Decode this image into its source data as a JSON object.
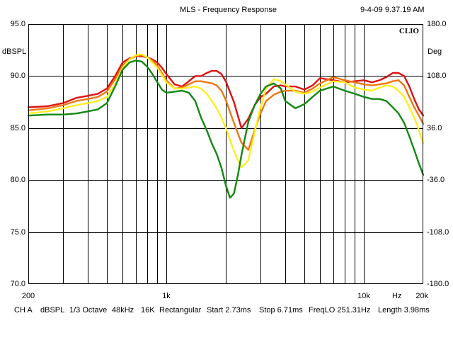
{
  "header": {
    "title": "MLS - Frequency Response",
    "datetime": "9-4-09 9.37.19 AM"
  },
  "chart_data": {
    "type": "line",
    "title": "MLS - Frequency Response",
    "watermark": "CLIO",
    "ylabel": "dBSPL",
    "y2label": "Deg",
    "xlabel": "Hz",
    "x_scale": "log",
    "xlim": [
      200,
      20000
    ],
    "ylim": [
      70,
      95
    ],
    "y2lim": [
      -180,
      180
    ],
    "grid": true,
    "x_tick_labels": [
      {
        "value": 200,
        "label": "200"
      },
      {
        "value": 1000,
        "label": "1k"
      },
      {
        "value": 10000,
        "label": "10k"
      },
      {
        "value": 20000,
        "label": "20k"
      }
    ],
    "y_tick_labels": [
      {
        "value": 95,
        "label": "95.0"
      },
      {
        "value": 90,
        "label": "90.0"
      },
      {
        "value": 85,
        "label": "85.0"
      },
      {
        "value": 80,
        "label": "80.0"
      },
      {
        "value": 75,
        "label": "75.0"
      },
      {
        "value": 70,
        "label": "70.0"
      }
    ],
    "y2_tick_labels": [
      {
        "value": 180,
        "label": "180.0"
      },
      {
        "value": 108,
        "label": "108.0"
      },
      {
        "value": 36,
        "label": "36.0"
      },
      {
        "value": -36,
        "label": "-36.0"
      },
      {
        "value": -108,
        "label": "-108.0"
      },
      {
        "value": -180,
        "label": "-180.0"
      }
    ],
    "series": [
      {
        "name": "red",
        "color": "#dd1111",
        "x": [
          200,
          250,
          300,
          350,
          400,
          450,
          500,
          550,
          600,
          650,
          700,
          750,
          800,
          850,
          900,
          950,
          1000,
          1100,
          1200,
          1300,
          1400,
          1500,
          1600,
          1700,
          1800,
          1900,
          2000,
          2200,
          2400,
          2600,
          2800,
          3000,
          3200,
          3500,
          3800,
          4000,
          4500,
          5000,
          5500,
          6000,
          7000,
          8000,
          9000,
          10000,
          11000,
          12000,
          13000,
          14000,
          15000,
          16000,
          17000,
          18000,
          19000,
          20000
        ],
        "y": [
          87.0,
          87.1,
          87.4,
          87.9,
          88.1,
          88.3,
          88.8,
          90.0,
          91.3,
          91.7,
          91.9,
          91.9,
          91.8,
          91.6,
          91.3,
          90.8,
          90.2,
          89.2,
          89.0,
          89.5,
          90.0,
          90.0,
          90.3,
          90.5,
          90.5,
          90.2,
          89.5,
          87.5,
          85.0,
          85.9,
          87.2,
          88.0,
          88.3,
          89.0,
          89.1,
          89.0,
          89.0,
          88.7,
          89.1,
          89.8,
          89.6,
          89.4,
          89.5,
          89.6,
          89.4,
          89.6,
          89.9,
          90.3,
          90.3,
          90.0,
          89.0,
          87.8,
          86.8,
          86.2
        ]
      },
      {
        "name": "orange",
        "color": "#ee7711",
        "x": [
          200,
          250,
          300,
          350,
          400,
          450,
          500,
          550,
          600,
          650,
          700,
          750,
          800,
          850,
          900,
          950,
          1000,
          1100,
          1200,
          1300,
          1400,
          1500,
          1600,
          1700,
          1800,
          1900,
          2000,
          2200,
          2400,
          2600,
          2800,
          3000,
          3200,
          3500,
          3800,
          4000,
          4500,
          5000,
          5500,
          6000,
          7000,
          8000,
          9000,
          10000,
          11000,
          12000,
          13000,
          14000,
          15000,
          16000,
          17000,
          18000,
          19000,
          20000
        ],
        "y": [
          86.7,
          86.9,
          87.2,
          87.6,
          87.8,
          88.0,
          88.5,
          89.7,
          91.0,
          91.6,
          91.9,
          92.0,
          91.8,
          91.5,
          91.0,
          90.3,
          89.6,
          88.8,
          88.9,
          89.2,
          89.5,
          89.5,
          89.4,
          89.3,
          89.1,
          88.6,
          87.7,
          85.5,
          83.6,
          82.9,
          84.8,
          86.4,
          87.6,
          88.2,
          88.5,
          88.6,
          88.6,
          88.4,
          88.8,
          89.3,
          89.9,
          89.6,
          89.4,
          89.2,
          89.1,
          89.2,
          89.3,
          89.5,
          89.6,
          89.1,
          88.0,
          87.0,
          86.2,
          85.4
        ]
      },
      {
        "name": "yellow",
        "color": "#ffee22",
        "x": [
          200,
          250,
          300,
          350,
          400,
          450,
          500,
          550,
          600,
          650,
          700,
          750,
          800,
          850,
          900,
          950,
          1000,
          1100,
          1200,
          1300,
          1400,
          1500,
          1600,
          1700,
          1800,
          1900,
          2000,
          2200,
          2400,
          2600,
          2800,
          3000,
          3200,
          3500,
          3800,
          4000,
          4500,
          5000,
          5500,
          6000,
          7000,
          8000,
          9000,
          10000,
          11000,
          12000,
          13000,
          14000,
          15000,
          16000,
          17000,
          18000,
          19000,
          20000
        ],
        "y": [
          86.4,
          86.6,
          86.9,
          87.2,
          87.4,
          87.6,
          88.0,
          89.2,
          90.8,
          91.6,
          92.0,
          92.1,
          91.8,
          91.3,
          90.8,
          90.1,
          89.4,
          88.8,
          88.8,
          88.9,
          89.0,
          88.8,
          88.3,
          87.6,
          86.9,
          86.0,
          85.0,
          82.8,
          81.2,
          81.9,
          84.6,
          87.0,
          88.8,
          89.7,
          89.5,
          89.2,
          88.5,
          88.3,
          88.5,
          88.9,
          89.5,
          89.4,
          88.9,
          88.7,
          88.6,
          88.9,
          89.1,
          89.0,
          88.6,
          88.0,
          87.0,
          86.0,
          84.8,
          83.5
        ]
      },
      {
        "name": "green",
        "color": "#118811",
        "x": [
          200,
          250,
          300,
          350,
          400,
          450,
          500,
          550,
          600,
          650,
          700,
          750,
          800,
          850,
          900,
          950,
          1000,
          1100,
          1200,
          1300,
          1400,
          1500,
          1600,
          1700,
          1800,
          1900,
          2000,
          2100,
          2200,
          2300,
          2400,
          2600,
          2800,
          3000,
          3200,
          3500,
          3800,
          4000,
          4500,
          5000,
          5500,
          6000,
          7000,
          8000,
          9000,
          10000,
          11000,
          12000,
          13000,
          14000,
          15000,
          16000,
          17000,
          18000,
          19000,
          20000
        ],
        "y": [
          86.2,
          86.3,
          86.3,
          86.4,
          86.6,
          86.8,
          87.4,
          89.0,
          90.6,
          91.3,
          91.5,
          91.4,
          90.9,
          90.2,
          89.4,
          88.7,
          88.4,
          88.5,
          88.6,
          88.4,
          87.6,
          86.0,
          84.8,
          83.5,
          82.5,
          81.2,
          79.5,
          78.3,
          78.7,
          80.4,
          82.4,
          85.6,
          87.2,
          88.3,
          89.0,
          89.3,
          88.8,
          87.6,
          86.9,
          87.3,
          88.0,
          88.6,
          89.0,
          88.6,
          88.3,
          88.0,
          87.8,
          87.8,
          87.6,
          87.0,
          86.4,
          85.5,
          84.2,
          82.9,
          81.6,
          80.5
        ]
      }
    ]
  },
  "footer": {
    "channel": "CH A",
    "unit": "dBSPL",
    "smoothing": "1/3 Octave",
    "sample_rate": "48kHz",
    "fft_size": "16K",
    "window": "Rectangular",
    "start": "Start 2.73ms",
    "stop": "Stop 6.71ms",
    "freq_lo": "FreqLO 251.31Hz",
    "length": "Length 3.98ms"
  }
}
